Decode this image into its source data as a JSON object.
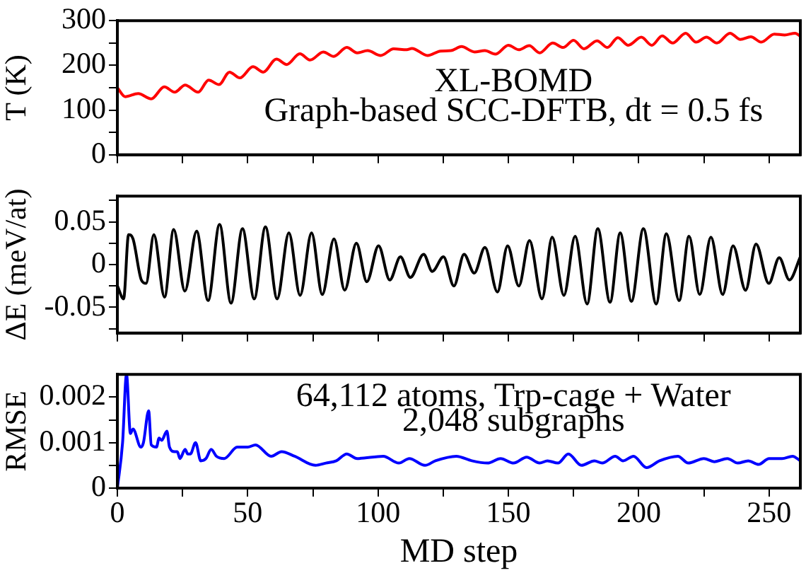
{
  "chart_data": [
    {
      "type": "line",
      "ylabel": "T (K)",
      "annotations": [
        "XL-BOMD",
        "Graph-based SCC-DFTB, dt = 0.5 fs"
      ],
      "xlim": [
        0,
        262
      ],
      "xticks": [
        0,
        {
          "value": 25,
          "label": null
        },
        50,
        {
          "value": 75,
          "label": null
        },
        100,
        {
          "value": 125,
          "label": null
        },
        150,
        {
          "value": 175,
          "label": null
        },
        200,
        {
          "value": 225,
          "label": null
        },
        250
      ],
      "ylim": [
        0,
        300
      ],
      "yticks": [
        0,
        {
          "value": 50,
          "label": null
        },
        100,
        {
          "value": 150,
          "label": null
        },
        200,
        {
          "value": 250,
          "label": null
        },
        300
      ],
      "tick_labels": "y",
      "grid": false,
      "legend": false,
      "x": [
        0,
        3,
        8,
        13,
        18,
        22,
        26,
        31,
        35,
        39,
        43,
        47,
        52,
        56,
        61,
        65,
        70,
        74,
        79,
        83,
        88,
        92,
        96,
        101,
        106,
        111,
        113,
        119,
        124,
        128,
        132,
        137,
        141,
        145,
        150,
        154,
        158,
        162,
        167,
        171,
        175,
        179,
        184,
        188,
        192,
        196,
        201,
        205,
        209,
        213,
        218,
        222,
        226,
        230,
        235,
        239,
        243,
        247,
        252,
        256,
        260,
        262
      ],
      "series": [
        {
          "color": "#ff0000",
          "values": [
            150,
            130,
            137,
            125,
            152,
            140,
            156,
            140,
            167,
            157,
            185,
            172,
            197,
            185,
            214,
            202,
            226,
            212,
            230,
            220,
            240,
            228,
            233,
            222,
            237,
            235,
            238,
            222,
            232,
            233,
            242,
            230,
            233,
            225,
            245,
            235,
            244,
            228,
            250,
            240,
            256,
            237,
            255,
            240,
            262,
            245,
            263,
            245,
            266,
            250,
            272,
            252,
            263,
            250,
            272,
            258,
            264,
            252,
            270,
            268,
            272,
            265
          ]
        }
      ]
    },
    {
      "type": "line",
      "ylabel": "ΔE (meV/at)",
      "xlim": [
        0,
        262
      ],
      "xticks": [
        0,
        {
          "value": 25,
          "label": null
        },
        50,
        {
          "value": 75,
          "label": null
        },
        100,
        {
          "value": 125,
          "label": null
        },
        150,
        {
          "value": 175,
          "label": null
        },
        200,
        {
          "value": 225,
          "label": null
        },
        250
      ],
      "ylim": [
        -0.08,
        0.08
      ],
      "yticks": [
        {
          "value": -0.075,
          "label": null
        },
        -0.05,
        {
          "value": -0.025,
          "label": null
        },
        0,
        {
          "value": 0.025,
          "label": null
        },
        0.05,
        {
          "value": 0.075,
          "label": null
        }
      ],
      "tick_labels": "y",
      "grid": false,
      "legend": false,
      "x": [
        0,
        2.4,
        4.3,
        6,
        9.2,
        11,
        14,
        18.1,
        21.6,
        25.9,
        30.4,
        34.8,
        39.2,
        43.6,
        48,
        52.5,
        56.8,
        61.3,
        65.8,
        70.1,
        74.5,
        78.6,
        83.1,
        87.2,
        91.7,
        95.7,
        100.2,
        104.5,
        108.6,
        112.4,
        117.5,
        120.8,
        125.1,
        129.1,
        133,
        136.9,
        141,
        145.8,
        149.7,
        154,
        158.1,
        162.9,
        166.8,
        171.3,
        175.6,
        180.2,
        184.3,
        189,
        192.9,
        197.2,
        201.8,
        206.7,
        210.6,
        215.5,
        219.3,
        223.4,
        227.7,
        232.2,
        236.2,
        241,
        245,
        249.9,
        253.9,
        257.8,
        262
      ],
      "series": [
        {
          "color": "#000000",
          "values": [
            -0.025,
            -0.04,
            0.035,
            0.03,
            -0.018,
            -0.022,
            0.035,
            -0.038,
            0.041,
            -0.031,
            0.039,
            -0.042,
            0.047,
            -0.045,
            0.042,
            -0.04,
            0.044,
            -0.04,
            0.037,
            -0.036,
            0.037,
            -0.035,
            0.03,
            -0.03,
            0.025,
            -0.02,
            0.022,
            -0.018,
            0.009,
            -0.015,
            0.012,
            -0.008,
            0.009,
            -0.025,
            0.012,
            -0.01,
            0.02,
            -0.032,
            0.022,
            -0.025,
            0.028,
            -0.04,
            0.032,
            -0.036,
            0.033,
            -0.046,
            0.042,
            -0.044,
            0.037,
            -0.043,
            0.042,
            -0.046,
            0.036,
            -0.042,
            0.033,
            -0.035,
            0.032,
            -0.035,
            0.022,
            -0.03,
            0.024,
            -0.022,
            0.008,
            -0.018,
            0.009
          ]
        }
      ]
    },
    {
      "type": "line",
      "ylabel": "RMSE",
      "xlabel": "MD step",
      "annotations": [
        "64,112 atoms, Trp-cage + Water",
        "2,048 subgraphs"
      ],
      "xlim": [
        0,
        262
      ],
      "xticks": [
        0,
        {
          "value": 25,
          "label": null
        },
        50,
        {
          "value": 75,
          "label": null
        },
        100,
        {
          "value": 125,
          "label": null
        },
        150,
        {
          "value": 175,
          "label": null
        },
        200,
        {
          "value": 225,
          "label": null
        },
        250
      ],
      "ylim": [
        0,
        0.0025
      ],
      "yticks": [
        0,
        {
          "value": 0.0005,
          "label": null
        },
        0.001,
        {
          "value": 0.0015,
          "label": null
        },
        0.002
      ],
      "grid": false,
      "legend": false,
      "x": [
        0,
        2,
        3.5,
        5,
        6,
        9,
        10,
        12,
        13,
        15,
        16,
        17,
        19,
        20,
        22,
        23,
        24,
        26,
        27,
        28,
        30,
        32,
        34,
        36,
        38,
        41,
        46,
        50,
        53,
        59,
        63,
        68,
        76,
        80,
        84,
        88,
        92,
        102,
        108,
        112,
        118,
        122,
        130,
        136,
        142,
        147,
        152,
        157,
        162,
        165,
        169,
        173,
        178,
        183,
        186,
        191,
        194,
        198,
        203,
        208,
        215,
        219,
        225,
        229,
        234,
        238,
        242,
        246,
        250,
        255,
        259,
        262
      ],
      "series": [
        {
          "color": "#0000ff",
          "values": [
            0,
            0.001,
            0.0025,
            0.0012,
            0.0013,
            0.0009,
            0.001,
            0.0017,
            0.00095,
            0.0009,
            0.0011,
            0.00105,
            0.00125,
            0.0009,
            0.0008,
            0.0008,
            0.00065,
            0.00085,
            0.00075,
            0.00075,
            0.001,
            0.0006,
            0.00065,
            0.00085,
            0.0007,
            0.00065,
            0.0009,
            0.0009,
            0.00095,
            0.0007,
            0.0008,
            0.0007,
            0.0005,
            0.00055,
            0.0006,
            0.00075,
            0.00065,
            0.0007,
            0.00055,
            0.00065,
            0.0005,
            0.0006,
            0.0007,
            0.0006,
            0.00055,
            0.00065,
            0.00055,
            0.00068,
            0.00055,
            0.0006,
            0.00055,
            0.00075,
            0.0005,
            0.0006,
            0.00055,
            0.0007,
            0.0006,
            0.0007,
            0.00045,
            0.0006,
            0.0007,
            0.00055,
            0.00065,
            0.00058,
            0.00065,
            0.00055,
            0.0006,
            0.00052,
            0.00065,
            0.00065,
            0.0007,
            0.0006
          ]
        }
      ]
    }
  ]
}
